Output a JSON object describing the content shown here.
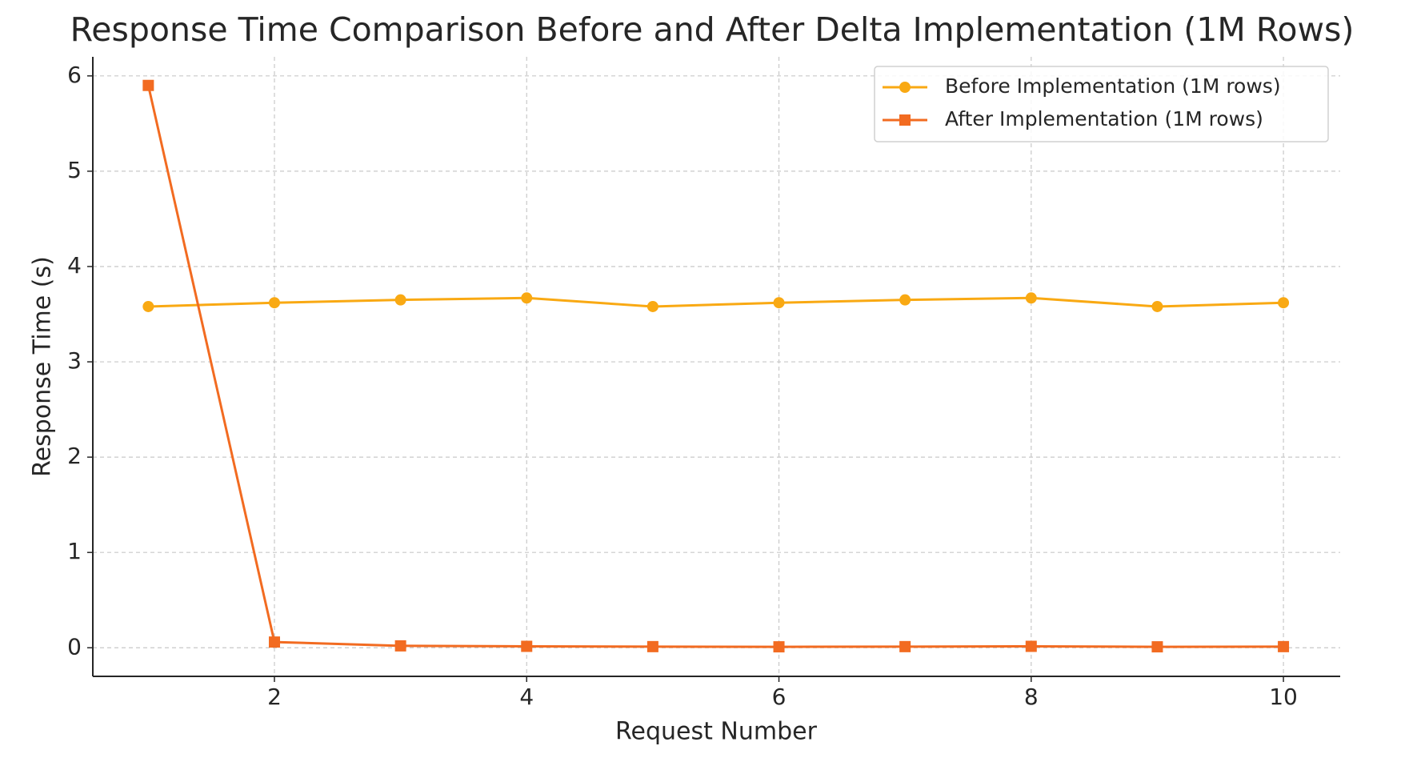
{
  "chart_data": {
    "type": "line",
    "title": "Response Time Comparison Before and After Delta Implementation (1M Rows)",
    "x_label": "Request Number",
    "y_label": "Response Time (s)",
    "x": [
      1,
      2,
      3,
      4,
      5,
      6,
      7,
      8,
      9,
      10
    ],
    "series": [
      {
        "name": "Before Implementation (1M rows)",
        "color": "#f9a913",
        "marker": "circle",
        "values": [
          3.58,
          3.62,
          3.65,
          3.67,
          3.58,
          3.62,
          3.65,
          3.67,
          3.58,
          3.62
        ]
      },
      {
        "name": "After Implementation (1M rows)",
        "color": "#f26b21",
        "marker": "square",
        "values": [
          5.9,
          0.06,
          0.02,
          0.015,
          0.012,
          0.01,
          0.012,
          0.015,
          0.01,
          0.012
        ]
      }
    ],
    "xlim": [
      0.56,
      10.45
    ],
    "xticks": [
      2,
      4,
      6,
      8,
      10
    ],
    "ylim": [
      -0.3,
      6.2
    ],
    "yticks": [
      0,
      1,
      2,
      3,
      4,
      5,
      6
    ],
    "grid": true,
    "legend": "upper right"
  }
}
